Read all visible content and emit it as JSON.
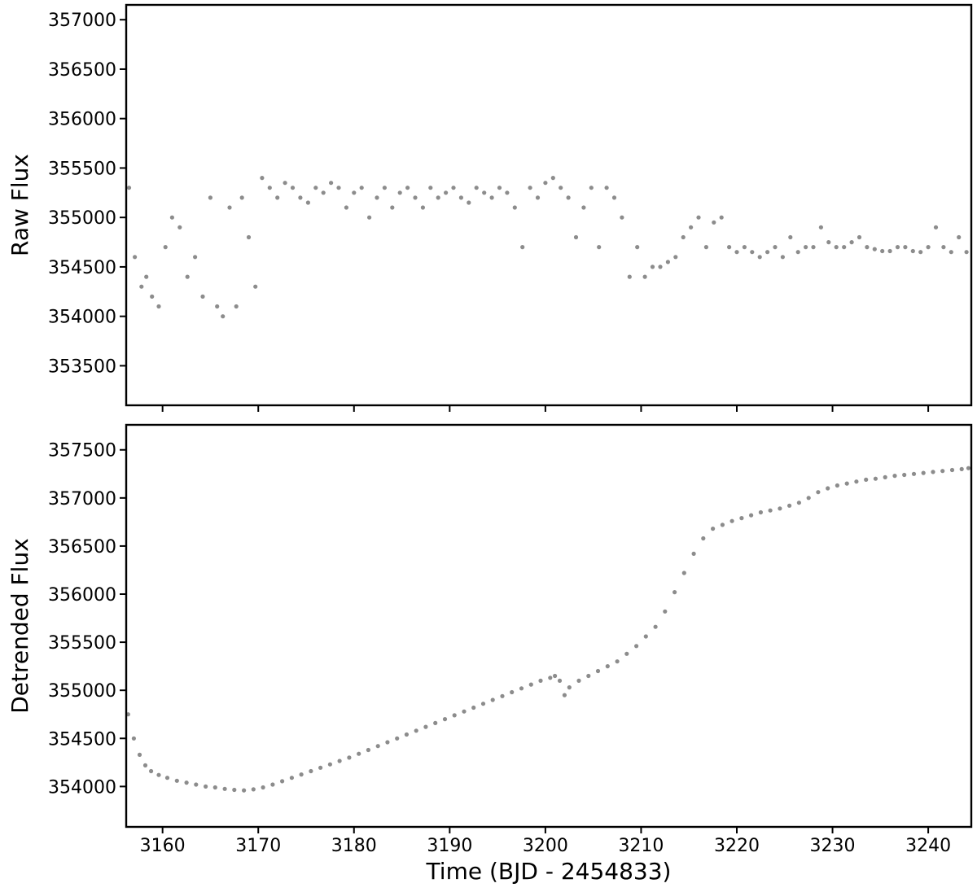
{
  "chart_data": [
    {
      "type": "scatter",
      "ylabel": "Raw Flux",
      "xlabel": "",
      "xlim": [
        3156.2,
        3244.5
      ],
      "ylim": [
        353100,
        357150
      ],
      "xticks": [
        3160,
        3170,
        3180,
        3190,
        3200,
        3210,
        3220,
        3230,
        3240
      ],
      "show_x_tick_labels": false,
      "yticks": [
        353500,
        354000,
        354500,
        355000,
        355500,
        356000,
        356500,
        357000
      ],
      "ytick_labels": [
        "353500",
        "354000",
        "354500",
        "355000",
        "355500",
        "356000",
        "356500",
        "357000"
      ],
      "grid": false,
      "marker_color": "#000000",
      "series": [
        {
          "description_of_shape": "scattered cloud, sawtooth ramps",
          "x": [
            3156.5,
            3157.1,
            3157.8,
            3158.3,
            3158.9,
            3159.6,
            3160.3,
            3161.0,
            3161.8,
            3162.6,
            3163.4,
            3164.2,
            3165.0,
            3165.7,
            3166.3,
            3167.0,
            3167.7,
            3168.3,
            3169.0,
            3169.7,
            3170.4,
            3171.2,
            3172.0,
            3172.8,
            3173.6,
            3174.4,
            3175.2,
            3176.0,
            3176.8,
            3177.6,
            3178.4,
            3179.2,
            3180.0,
            3180.8,
            3181.6,
            3182.4,
            3183.2,
            3184.0,
            3184.8,
            3185.6,
            3186.4,
            3187.2,
            3188.0,
            3188.8,
            3189.6,
            3190.4,
            3191.2,
            3192.0,
            3192.8,
            3193.6,
            3194.4,
            3195.2,
            3196.0,
            3196.8,
            3197.6,
            3198.4,
            3199.2,
            3200.0,
            3200.8,
            3201.6,
            3202.4,
            3203.2,
            3204.0,
            3204.8,
            3205.6,
            3206.4,
            3207.2,
            3208.0,
            3208.8,
            3209.6,
            3210.4,
            3211.2,
            3212.0,
            3212.8,
            3213.6,
            3214.4,
            3215.2,
            3216.0,
            3216.8,
            3217.6,
            3218.4,
            3219.2,
            3220.0,
            3220.8,
            3221.6,
            3222.4,
            3223.2,
            3224.0,
            3224.8,
            3225.6,
            3226.4,
            3227.2,
            3228.0,
            3228.8,
            3229.6,
            3230.4,
            3231.2,
            3232.0,
            3232.8,
            3233.6,
            3234.4,
            3235.2,
            3236.0,
            3236.8,
            3237.6,
            3238.4,
            3239.2,
            3240.0,
            3240.8,
            3241.6,
            3242.4,
            3243.2,
            3244.0
          ],
          "y": [
            355300,
            354600,
            354300,
            354400,
            354200,
            354100,
            354700,
            355000,
            354900,
            354400,
            354600,
            354200,
            355200,
            354100,
            354000,
            355100,
            354100,
            355200,
            354800,
            354300,
            355400,
            355300,
            355200,
            355350,
            355300,
            355200,
            355150,
            355300,
            355250,
            355350,
            355300,
            355100,
            355250,
            355300,
            355000,
            355200,
            355300,
            355100,
            355250,
            355300,
            355200,
            355100,
            355300,
            355200,
            355250,
            355300,
            355200,
            355150,
            355300,
            355250,
            355200,
            355300,
            355250,
            355100,
            354700,
            355300,
            355200,
            355350,
            355400,
            355300,
            355200,
            354800,
            355100,
            355300,
            354700,
            355300,
            355200,
            355000,
            354400,
            354700,
            354400,
            354500,
            354500,
            354550,
            354600,
            354800,
            354900,
            355000,
            354700,
            354950,
            355000,
            354700,
            354650,
            354700,
            354650,
            354600,
            354650,
            354700,
            354600,
            354800,
            354650,
            354700,
            354700,
            354900,
            354750,
            354700,
            354700,
            354750,
            354800,
            354700,
            354680,
            354660,
            354660,
            354700,
            354700,
            354660,
            354650,
            354700,
            354900,
            354700,
            354650,
            354800,
            354650
          ]
        }
      ]
    },
    {
      "type": "scatter",
      "ylabel": "Detrended Flux",
      "xlabel": "Time (BJD - 2454833)",
      "xlim": [
        3156.2,
        3244.5
      ],
      "ylim": [
        353580,
        357760
      ],
      "xticks": [
        3160,
        3170,
        3180,
        3190,
        3200,
        3210,
        3220,
        3230,
        3240
      ],
      "xtick_labels": [
        "3160",
        "3170",
        "3180",
        "3190",
        "3200",
        "3210",
        "3220",
        "3230",
        "3240"
      ],
      "yticks": [
        354000,
        354500,
        355000,
        355500,
        356000,
        356500,
        357000,
        357500
      ],
      "ytick_labels": [
        "354000",
        "354500",
        "355000",
        "355500",
        "356000",
        "356500",
        "357000",
        "357500"
      ],
      "grid": false,
      "marker_color": "#000000",
      "series": [
        {
          "x": [
            3156.4,
            3157.0,
            3157.6,
            3158.2,
            3158.8,
            3159.6,
            3160.5,
            3161.5,
            3162.5,
            3163.5,
            3164.5,
            3165.5,
            3166.5,
            3167.5,
            3168.5,
            3169.5,
            3170.5,
            3171.5,
            3172.5,
            3173.5,
            3174.5,
            3175.5,
            3176.5,
            3177.5,
            3178.5,
            3179.5,
            3180.5,
            3181.5,
            3182.5,
            3183.5,
            3184.5,
            3185.5,
            3186.5,
            3187.5,
            3188.5,
            3189.5,
            3190.5,
            3191.5,
            3192.5,
            3193.5,
            3194.5,
            3195.5,
            3196.5,
            3197.5,
            3198.5,
            3199.5,
            3200.5,
            3201.0,
            3201.5,
            3202.0,
            3202.5,
            3203.5,
            3204.5,
            3205.5,
            3206.5,
            3207.5,
            3208.5,
            3209.5,
            3210.5,
            3211.5,
            3212.5,
            3213.5,
            3214.5,
            3215.5,
            3216.5,
            3217.5,
            3218.5,
            3219.5,
            3220.5,
            3221.5,
            3222.5,
            3223.5,
            3224.5,
            3225.5,
            3226.5,
            3227.5,
            3228.5,
            3229.5,
            3230.5,
            3231.5,
            3232.5,
            3233.5,
            3234.5,
            3235.5,
            3236.5,
            3237.5,
            3238.5,
            3239.5,
            3240.5,
            3241.5,
            3242.5,
            3243.5,
            3244.2
          ],
          "y": [
            354750,
            354500,
            354330,
            354220,
            354160,
            354120,
            354090,
            354060,
            354040,
            354020,
            354000,
            353990,
            353975,
            353965,
            353960,
            353970,
            353990,
            354020,
            354055,
            354090,
            354125,
            354160,
            354195,
            354230,
            354265,
            354300,
            354340,
            354380,
            354420,
            354460,
            354500,
            354540,
            354580,
            354620,
            354660,
            354700,
            354740,
            354780,
            354820,
            354860,
            354900,
            354940,
            354980,
            355020,
            355060,
            355100,
            355130,
            355150,
            355100,
            354950,
            355030,
            355100,
            355150,
            355200,
            355250,
            355300,
            355380,
            355460,
            355560,
            355660,
            355820,
            356020,
            356220,
            356420,
            356580,
            356680,
            356720,
            356760,
            356790,
            356820,
            356850,
            356870,
            356890,
            356920,
            356950,
            357000,
            357060,
            357100,
            357130,
            357150,
            357170,
            357190,
            357200,
            357215,
            357230,
            357240,
            357250,
            357260,
            357270,
            357280,
            357290,
            357300,
            357310
          ]
        }
      ]
    }
  ]
}
